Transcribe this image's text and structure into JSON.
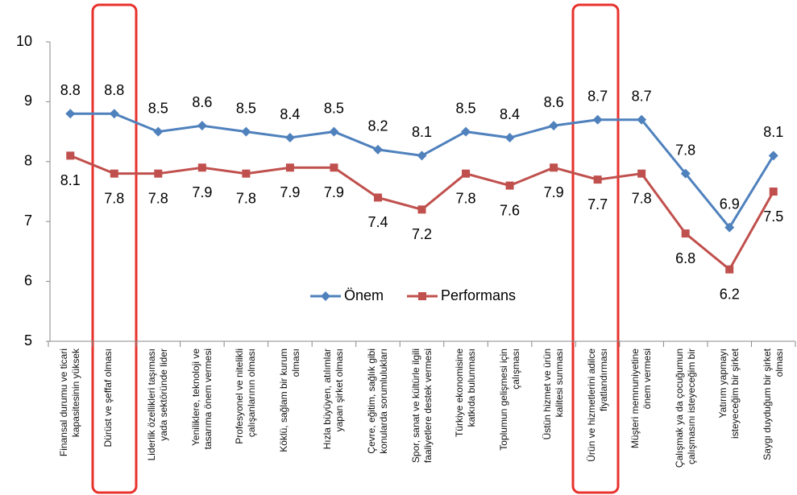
{
  "chart_data": {
    "type": "line",
    "categories": [
      "Finansal durumu ve ticari\nkapasitesinin yüksek",
      "Dürüst ve şeffaf olması",
      "Liderlik özellikleri taşıması\nyada sektöründe lider",
      "Yeniliklere, teknoloji ve\ntasarıma önem vermesi",
      "Profesyonel ve nitelikli\nçalışanlarının olması",
      "Köklü, sağlam bir kurum\nolması",
      "Hızla büyüyen, atılımlar\nyapan şirket olması",
      "Çevre, eğitim, sağlık gibi\nkonularda sorumlulukları",
      "Spor, sanat ve kültürle ilgili\nfaaliyetlere destek vermesi",
      "Türkiye ekonomisine\nkatkıda bulunması",
      "Toplumun gelişmesi için\nçalışması",
      "Üstün hizmet ve ürün\nkalitesi sunması",
      "Ürün ve hizmetlerini adilce\nfiyatlandırması",
      "Müşteri memnuniyetine\nönem vermesi",
      "Çalışmak ya da çocuğumun\nçalışmasını isteyeceğim bir",
      "Yatırım yapmayı\nisteyeceğim bir şirket",
      "Saygı duyduğum bir şirket\nolması"
    ],
    "series": [
      {
        "name": "Önem",
        "color": "#4f81bd",
        "marker": "diamond",
        "values": [
          8.8,
          8.8,
          8.5,
          8.6,
          8.5,
          8.4,
          8.5,
          8.2,
          8.1,
          8.5,
          8.4,
          8.6,
          8.7,
          8.7,
          7.8,
          6.9,
          8.1
        ]
      },
      {
        "name": "Performans",
        "color": "#c0504d",
        "marker": "square",
        "values": [
          8.1,
          7.8,
          7.8,
          7.9,
          7.8,
          7.9,
          7.9,
          7.4,
          7.2,
          7.8,
          7.6,
          7.9,
          7.7,
          7.8,
          6.8,
          6.2,
          7.5
        ]
      }
    ],
    "ylim": [
      5,
      10
    ],
    "yticks": [
      5,
      6,
      7,
      8,
      9,
      10
    ],
    "grid": false,
    "legend": "center"
  }
}
